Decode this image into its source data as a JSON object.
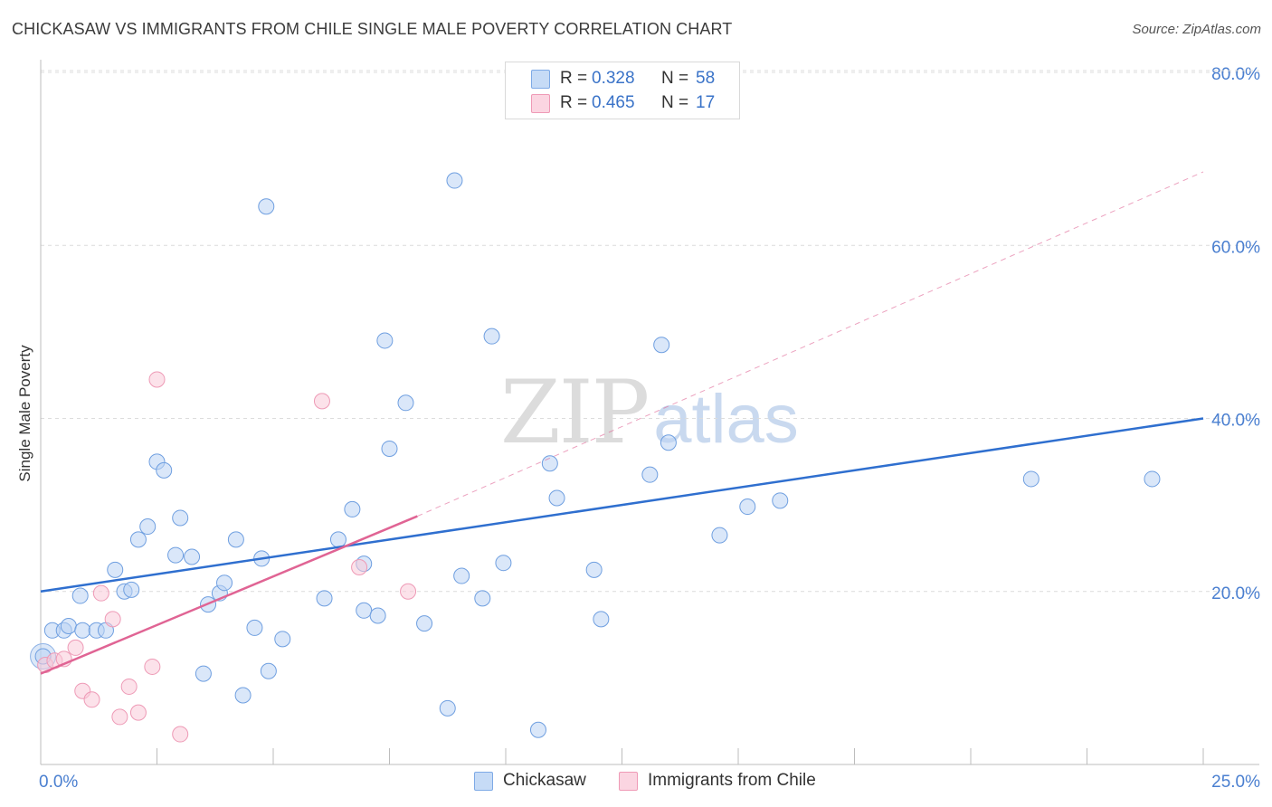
{
  "title": "CHICKASAW VS IMMIGRANTS FROM CHILE SINGLE MALE POVERTY CORRELATION CHART",
  "source": "Source: ZipAtlas.com",
  "watermark": {
    "zip": "ZIP",
    "atlas": "atlas"
  },
  "legend": {
    "rows": [
      {
        "r_label": "R =",
        "r_value": "0.328",
        "n_label": "N =",
        "n_value": "58",
        "color": "#a9c8f0"
      },
      {
        "r_label": "R =",
        "r_value": "0.465",
        "n_label": "N =",
        "n_value": "17",
        "color": "#f7bfd0"
      }
    ]
  },
  "chart_data": {
    "type": "scatter",
    "title": "CHICKASAW VS IMMIGRANTS FROM CHILE SINGLE MALE POVERTY CORRELATION CHART",
    "xlabel": "",
    "ylabel": "Single Male Poverty",
    "xlim": [
      0,
      25
    ],
    "ylim": [
      0,
      80
    ],
    "x_tick_labels": [
      "0.0%",
      "25.0%"
    ],
    "y_tick_labels": [
      "20.0%",
      "40.0%",
      "60.0%",
      "80.0%"
    ],
    "y_ticks": [
      20,
      40,
      60,
      80
    ],
    "grid": true,
    "legend_position": "top-center",
    "colors": {
      "chickasaw": "#4a86d8",
      "chile": "#e86a98"
    },
    "series": [
      {
        "name": "Chickasaw",
        "points": [
          [
            0.25,
            15.5
          ],
          [
            0.5,
            15.5
          ],
          [
            0.6,
            16.0
          ],
          [
            0.85,
            19.5
          ],
          [
            0.9,
            15.5
          ],
          [
            1.2,
            15.5
          ],
          [
            1.4,
            15.5
          ],
          [
            1.6,
            22.5
          ],
          [
            1.8,
            20.0
          ],
          [
            1.95,
            20.2
          ],
          [
            2.1,
            26.0
          ],
          [
            2.3,
            27.5
          ],
          [
            2.5,
            35.0
          ],
          [
            2.65,
            34.0
          ],
          [
            2.9,
            24.2
          ],
          [
            3.0,
            28.5
          ],
          [
            3.25,
            24.0
          ],
          [
            3.5,
            10.5
          ],
          [
            3.6,
            18.5
          ],
          [
            3.85,
            19.8
          ],
          [
            3.95,
            21.0
          ],
          [
            4.2,
            26.0
          ],
          [
            4.35,
            8.0
          ],
          [
            4.6,
            15.8
          ],
          [
            4.75,
            23.8
          ],
          [
            4.85,
            64.5
          ],
          [
            4.9,
            10.8
          ],
          [
            5.2,
            14.5
          ],
          [
            6.1,
            19.2
          ],
          [
            6.4,
            26.0
          ],
          [
            6.7,
            29.5
          ],
          [
            6.95,
            23.2
          ],
          [
            6.95,
            17.8
          ],
          [
            7.25,
            17.2
          ],
          [
            7.4,
            49.0
          ],
          [
            7.5,
            36.5
          ],
          [
            7.85,
            41.8
          ],
          [
            8.25,
            16.3
          ],
          [
            8.75,
            6.5
          ],
          [
            8.9,
            67.5
          ],
          [
            9.05,
            21.8
          ],
          [
            9.5,
            19.2
          ],
          [
            9.7,
            49.5
          ],
          [
            9.95,
            23.3
          ],
          [
            10.7,
            4.0
          ],
          [
            10.95,
            34.8
          ],
          [
            11.1,
            30.8
          ],
          [
            11.9,
            22.5
          ],
          [
            12.05,
            16.8
          ],
          [
            13.1,
            33.5
          ],
          [
            13.35,
            48.5
          ],
          [
            13.5,
            37.2
          ],
          [
            14.6,
            26.5
          ],
          [
            15.2,
            29.8
          ],
          [
            15.9,
            30.5
          ],
          [
            21.3,
            33.0
          ],
          [
            23.9,
            33.0
          ],
          [
            0.05,
            12.5
          ]
        ]
      },
      {
        "name": "Immigrants from Chile",
        "points": [
          [
            0.1,
            11.5
          ],
          [
            0.3,
            12.0
          ],
          [
            0.5,
            12.2
          ],
          [
            0.75,
            13.5
          ],
          [
            0.9,
            8.5
          ],
          [
            1.1,
            7.5
          ],
          [
            1.3,
            19.8
          ],
          [
            1.55,
            16.8
          ],
          [
            1.7,
            5.5
          ],
          [
            1.9,
            9.0
          ],
          [
            2.1,
            6.0
          ],
          [
            2.4,
            11.3
          ],
          [
            2.5,
            44.5
          ],
          [
            3.0,
            3.5
          ],
          [
            6.05,
            42.0
          ],
          [
            6.85,
            22.8
          ],
          [
            7.9,
            20.0
          ]
        ]
      }
    ],
    "trend_lines": [
      {
        "series": "Chickasaw",
        "from": [
          0,
          20.0
        ],
        "to": [
          25,
          40.0
        ],
        "style": "solid"
      },
      {
        "series": "Immigrants from Chile",
        "from": [
          0,
          10.5
        ],
        "to": [
          8.1,
          28.7
        ],
        "style": "solid"
      },
      {
        "series": "Immigrants from Chile",
        "from": [
          8.1,
          28.7
        ],
        "to": [
          25,
          68.5
        ],
        "style": "dashed"
      }
    ]
  },
  "bottom_legend": [
    {
      "label": "Chickasaw",
      "color": "#a9c8f0"
    },
    {
      "label": "Immigrants from Chile",
      "color": "#f7bfd0"
    }
  ]
}
